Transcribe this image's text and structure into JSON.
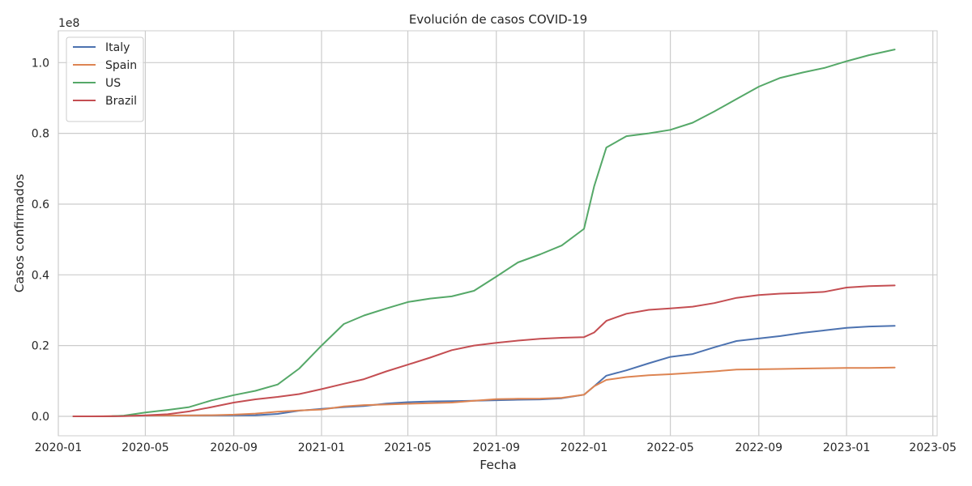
{
  "chart_data": {
    "type": "line",
    "title": "Evolución de casos COVID-19",
    "xlabel": "Fecha",
    "ylabel": "Casos confirmados",
    "y_offset_label": "1e8",
    "y_scale_factor": 100000000,
    "xlim": [
      "2020-01-01",
      "2023-05-07"
    ],
    "ylim": [
      -0.055,
      1.09
    ],
    "x_ticks": [
      "2020-01",
      "2020-05",
      "2020-09",
      "2021-01",
      "2021-05",
      "2021-09",
      "2022-01",
      "2022-05",
      "2022-09",
      "2023-01",
      "2023-05"
    ],
    "y_ticks": [
      "0.0",
      "0.2",
      "0.4",
      "0.6",
      "0.8",
      "1.0"
    ],
    "grid": true,
    "legend_position": "top-left",
    "x": [
      "2020-01-22",
      "2020-02-15",
      "2020-03-15",
      "2020-04-01",
      "2020-05-01",
      "2020-06-01",
      "2020-07-01",
      "2020-08-01",
      "2020-09-01",
      "2020-10-01",
      "2020-11-01",
      "2020-12-01",
      "2021-01-01",
      "2021-02-01",
      "2021-03-01",
      "2021-04-01",
      "2021-05-01",
      "2021-06-01",
      "2021-07-01",
      "2021-08-01",
      "2021-09-01",
      "2021-10-01",
      "2021-11-01",
      "2021-12-01",
      "2022-01-01",
      "2022-01-15",
      "2022-02-01",
      "2022-03-01",
      "2022-04-01",
      "2022-05-01",
      "2022-06-01",
      "2022-07-01",
      "2022-08-01",
      "2022-09-01",
      "2022-10-01",
      "2022-11-01",
      "2022-12-01",
      "2023-01-01",
      "2023-02-01",
      "2023-03-09"
    ],
    "series": [
      {
        "name": "Italy",
        "color": "#4c72b0",
        "values": [
          0.0,
          0.0,
          0.0002,
          0.001,
          0.002,
          0.0023,
          0.0024,
          0.0025,
          0.0027,
          0.0032,
          0.0068,
          0.016,
          0.021,
          0.026,
          0.029,
          0.036,
          0.04,
          0.0422,
          0.0427,
          0.044,
          0.0455,
          0.0468,
          0.0478,
          0.051,
          0.061,
          0.085,
          0.115,
          0.13,
          0.15,
          0.168,
          0.176,
          0.195,
          0.213,
          0.22,
          0.227,
          0.236,
          0.243,
          0.25,
          0.254,
          0.256
        ]
      },
      {
        "name": "Spain",
        "color": "#dd8452",
        "values": [
          0.0,
          0.0,
          0.0006,
          0.001,
          0.0022,
          0.0024,
          0.0025,
          0.0032,
          0.0048,
          0.0077,
          0.013,
          0.0166,
          0.0193,
          0.028,
          0.0318,
          0.0335,
          0.0355,
          0.0373,
          0.039,
          0.044,
          0.0485,
          0.0496,
          0.0502,
          0.0525,
          0.061,
          0.085,
          0.103,
          0.111,
          0.116,
          0.119,
          0.123,
          0.127,
          0.132,
          0.133,
          0.134,
          0.135,
          0.136,
          0.137,
          0.137,
          0.138
        ]
      },
      {
        "name": "US",
        "color": "#55a868",
        "values": [
          0.0,
          0.0,
          0.0001,
          0.002,
          0.011,
          0.018,
          0.026,
          0.045,
          0.06,
          0.072,
          0.09,
          0.135,
          0.2,
          0.261,
          0.285,
          0.305,
          0.323,
          0.333,
          0.339,
          0.355,
          0.395,
          0.435,
          0.458,
          0.483,
          0.53,
          0.65,
          0.76,
          0.792,
          0.8,
          0.81,
          0.83,
          0.862,
          0.897,
          0.932,
          0.957,
          0.972,
          0.985,
          1.004,
          1.021,
          1.037
        ]
      },
      {
        "name": "Brazil",
        "color": "#c44e52",
        "values": [
          0.0,
          0.0,
          0.0001,
          0.0006,
          0.003,
          0.006,
          0.014,
          0.026,
          0.039,
          0.048,
          0.055,
          0.063,
          0.077,
          0.092,
          0.105,
          0.127,
          0.146,
          0.166,
          0.187,
          0.2,
          0.208,
          0.214,
          0.219,
          0.222,
          0.224,
          0.237,
          0.27,
          0.29,
          0.301,
          0.305,
          0.31,
          0.32,
          0.335,
          0.343,
          0.347,
          0.349,
          0.352,
          0.364,
          0.368,
          0.37
        ]
      }
    ]
  }
}
